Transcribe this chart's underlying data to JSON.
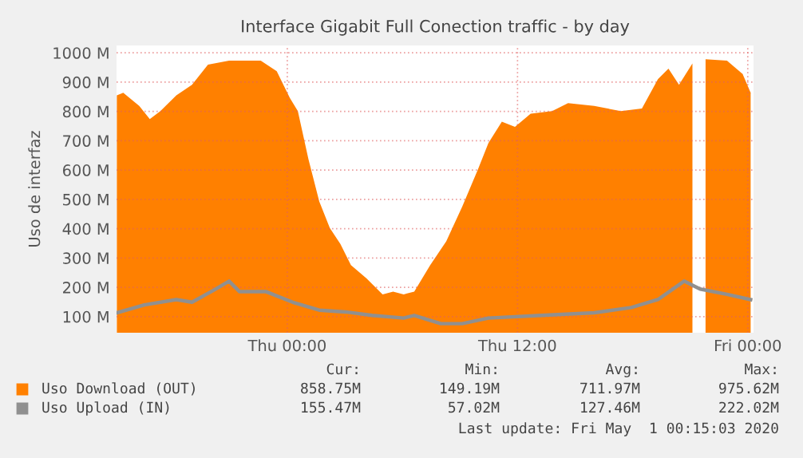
{
  "chart_data": {
    "type": "area",
    "title": "Interface Gigabit Full Conection traffic - by day",
    "ylabel": "Uso de interfaz",
    "xlim": [
      "2020-04-29T15:06",
      "2020-05-01T00:18"
    ],
    "xticks": [
      {
        "value": "2020-04-30T00:00",
        "label": "Thu 00:00"
      },
      {
        "value": "2020-04-30T12:00",
        "label": "Thu 12:00"
      },
      {
        "value": "2020-05-01T00:00",
        "label": "Fri 00:00"
      }
    ],
    "ylim": [
      45,
      1025
    ],
    "yticks": [
      {
        "value": 100,
        "label": "100 M"
      },
      {
        "value": 200,
        "label": "200 M"
      },
      {
        "value": 300,
        "label": "300 M"
      },
      {
        "value": 400,
        "label": "400 M"
      },
      {
        "value": 500,
        "label": "500 M"
      },
      {
        "value": 600,
        "label": "600 M"
      },
      {
        "value": 700,
        "label": "700 M"
      },
      {
        "value": 800,
        "label": "800 M"
      },
      {
        "value": 900,
        "label": "900 M"
      },
      {
        "value": 1000,
        "label": "1000 M"
      }
    ],
    "grid": true,
    "legend": "bottom left",
    "series": [
      {
        "name": "Uso Download (OUT)",
        "color": "#ff8000",
        "x": [
          "2020-04-29T15:07",
          "2020-04-29T15:27",
          "2020-04-29T16:17",
          "2020-04-29T16:50",
          "2020-04-29T17:23",
          "2020-04-29T18:13",
          "2020-04-29T19:02",
          "2020-04-29T19:52",
          "2020-04-29T20:58",
          "2020-04-29T22:37",
          "2020-04-29T23:27",
          "2020-04-30T00:08",
          "2020-04-30T00:33",
          "2020-04-30T01:06",
          "2020-04-30T01:40",
          "2020-04-30T02:13",
          "2020-04-30T02:46",
          "2020-04-30T03:19",
          "2020-04-30T04:08",
          "2020-04-30T04:58",
          "2020-04-30T05:31",
          "2020-04-30T06:04",
          "2020-04-30T06:37",
          "2020-04-30T07:27",
          "2020-04-30T08:17",
          "2020-04-30T09:07",
          "2020-04-30T09:56",
          "2020-04-30T10:29",
          "2020-04-30T11:11",
          "2020-04-30T11:52",
          "2020-04-30T12:41",
          "2020-04-30T13:48",
          "2020-04-30T14:38",
          "2020-04-30T16:00",
          "2020-04-30T17:23",
          "2020-04-30T18:29",
          "2020-04-30T19:19",
          "2020-04-30T19:52",
          "2020-04-30T20:25",
          "2020-04-30T21:07",
          "2020-04-30T21:31",
          "2020-04-30T21:48",
          "2020-04-30T22:55",
          "2020-04-30T23:44",
          "2020-05-01T00:09"
        ],
        "values": [
          855,
          864,
          819,
          774,
          801,
          855,
          891,
          960,
          973,
          973,
          937,
          846,
          801,
          638,
          493,
          402,
          348,
          276,
          230,
          176,
          185,
          176,
          185,
          276,
          357,
          475,
          602,
          692,
          765,
          747,
          792,
          801,
          828,
          819,
          801,
          810,
          910,
          946,
          891,
          964,
          null,
          978,
          973,
          928,
          864
        ]
      },
      {
        "name": "Uso Upload (IN)",
        "type": "line",
        "color": "#909090",
        "x": [
          "2020-04-29T15:07",
          "2020-04-29T16:33",
          "2020-04-29T18:13",
          "2020-04-29T19:02",
          "2020-04-29T20:08",
          "2020-04-29T20:58",
          "2020-04-29T21:31",
          "2020-04-29T22:54",
          "2020-04-30T00:17",
          "2020-04-30T01:40",
          "2020-04-30T03:02",
          "2020-04-30T04:25",
          "2020-04-30T06:04",
          "2020-04-30T06:37",
          "2020-04-30T08:00",
          "2020-04-30T09:07",
          "2020-04-30T10:29",
          "2020-04-30T13:15",
          "2020-04-30T16:00",
          "2020-04-30T17:56",
          "2020-04-30T19:19",
          "2020-04-30T20:41",
          "2020-04-30T21:31",
          "2020-04-30T22:55",
          "2020-05-01T00:09"
        ],
        "values": [
          113,
          140,
          158,
          149,
          189,
          221,
          185,
          185,
          149,
          122,
          116,
          104,
          95,
          104,
          76,
          76,
          95,
          104,
          113,
          131,
          158,
          221,
          194,
          176,
          158
        ]
      }
    ],
    "annotations": [
      "Cur:",
      "Min:",
      "Avg:",
      "Max:",
      "858.75M",
      "149.19M",
      "711.97M",
      "975.62M",
      "155.47M",
      "57.02M",
      "127.46M",
      "222.02M",
      "Last update: Fri May  1 00:15:03 2020"
    ]
  }
}
